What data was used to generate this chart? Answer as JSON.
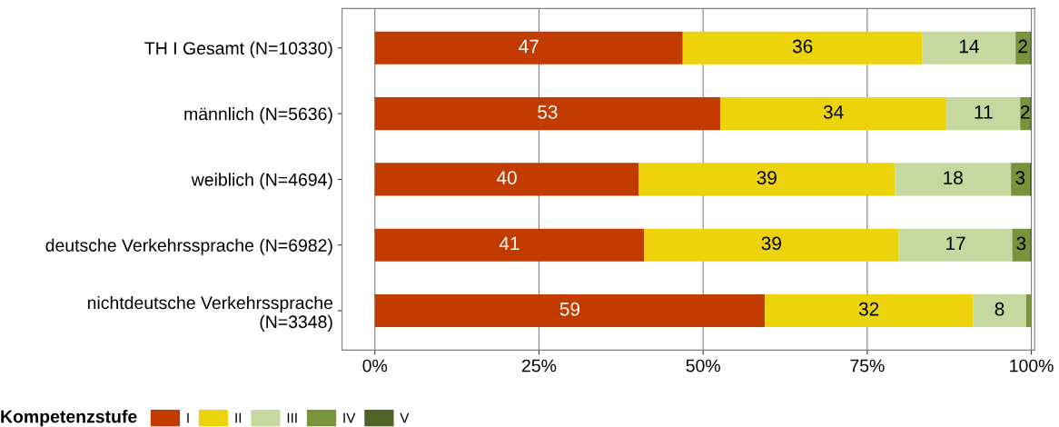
{
  "chart_data": {
    "type": "bar",
    "orientation": "horizontal",
    "stacked": true,
    "categories": [
      "TH I Gesamt (N=10330)",
      "männlich (N=5636)",
      "weiblich (N=4694)",
      "deutsche Verkehrssprache (N=6982)",
      "nichtdeutsche Verkehrssprache\n(N=3348)"
    ],
    "series": [
      {
        "name": "I",
        "color": "#c23b00",
        "values": [
          46.9,
          52.6,
          40.2,
          41.0,
          59.4
        ],
        "value_labels": [
          "47",
          "53",
          "40",
          "41",
          "59"
        ]
      },
      {
        "name": "II",
        "color": "#ecd30b",
        "values": [
          36.5,
          34.5,
          39.0,
          38.8,
          31.7
        ],
        "value_labels": [
          "36",
          "34",
          "39",
          "39",
          "32"
        ]
      },
      {
        "name": "III",
        "color": "#c4d89f",
        "values": [
          14.2,
          11.2,
          17.7,
          17.3,
          8.1
        ],
        "value_labels": [
          "14",
          "11",
          "18",
          "17",
          "8"
        ]
      },
      {
        "name": "IV",
        "color": "#77933c",
        "values": [
          2.2,
          1.5,
          2.8,
          2.7,
          0.8
        ],
        "value_labels": [
          "2",
          "2",
          "3",
          "3",
          null
        ]
      },
      {
        "name": "V",
        "color": "#4f6228",
        "values": [
          0.2,
          0.2,
          0.3,
          0.2,
          0.0
        ],
        "value_labels": [
          null,
          null,
          null,
          null,
          null
        ]
      }
    ],
    "xlim": [
      -5,
      100.5
    ],
    "xticks": [
      {
        "value": 0,
        "label": "0%"
      },
      {
        "value": 25,
        "label": "25%"
      },
      {
        "value": 50,
        "label": "50%"
      },
      {
        "value": 75,
        "label": "75%"
      },
      {
        "value": 100,
        "label": "100%"
      }
    ],
    "grid": "x",
    "legend": "bottom",
    "legend_title": "Kompetenzstufe"
  }
}
